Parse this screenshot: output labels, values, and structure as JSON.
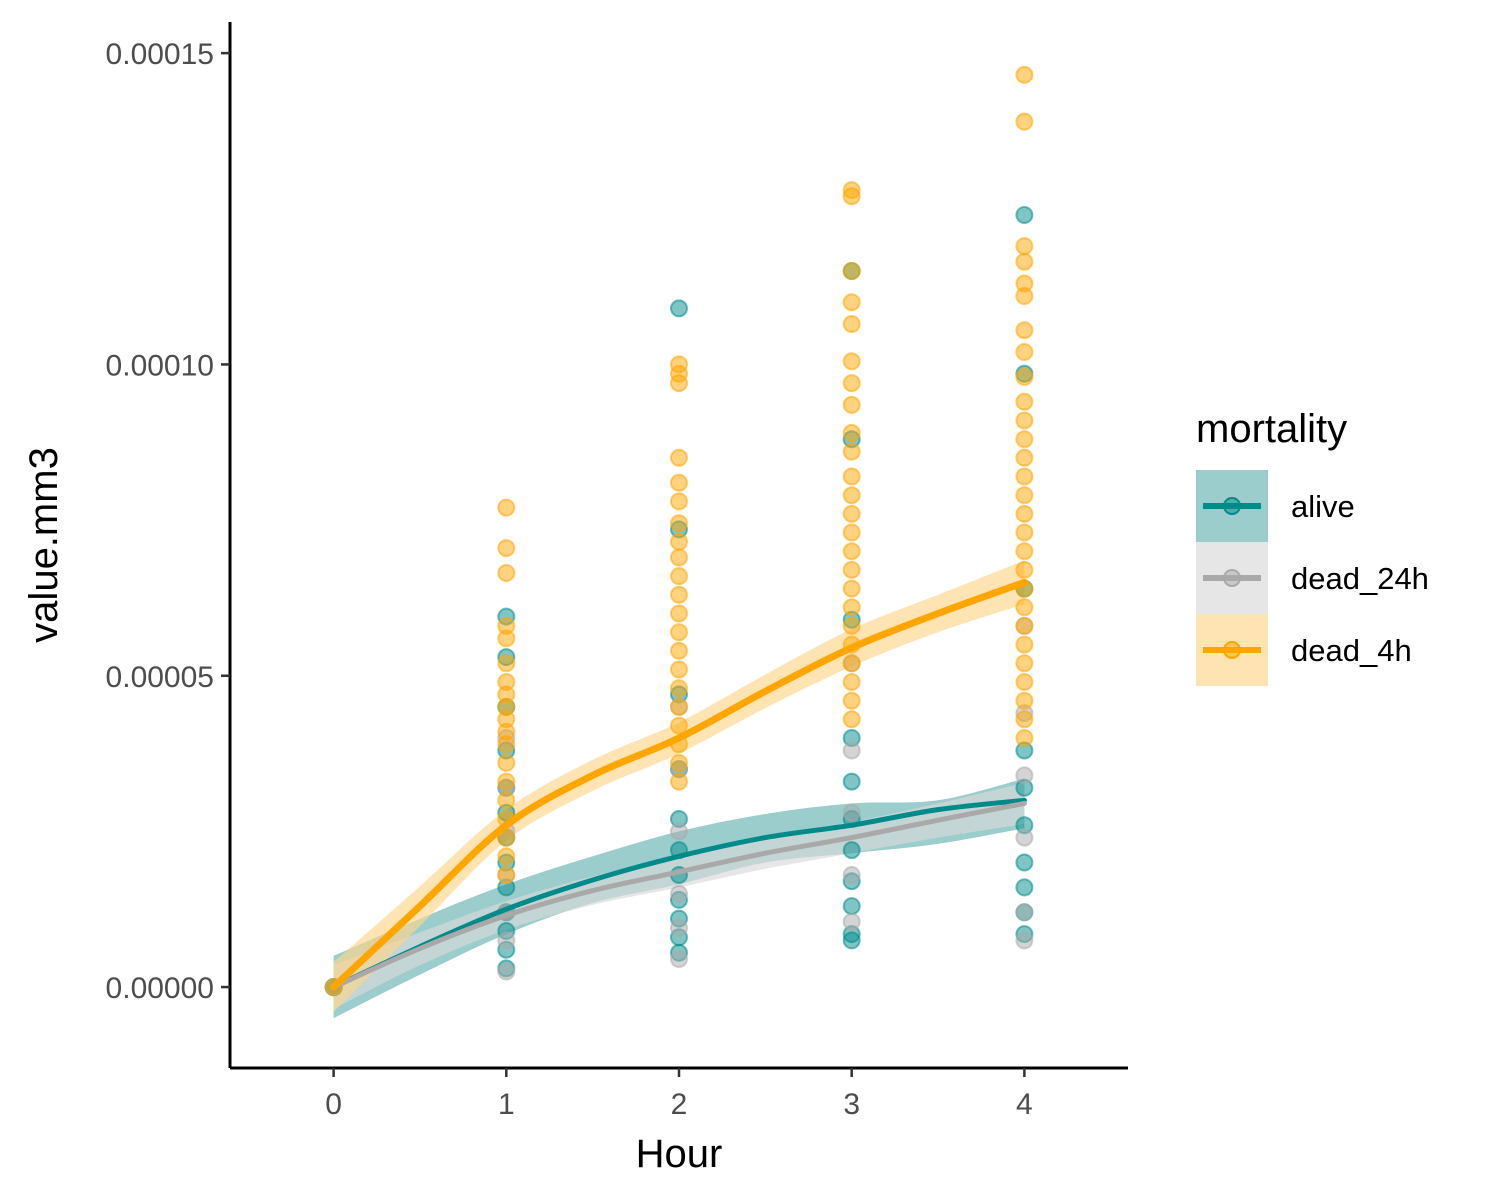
{
  "chart_data": {
    "type": "scatter",
    "title": "",
    "xlabel": "Hour",
    "ylabel": "value.mm3",
    "xlim": [
      -0.6,
      4.6
    ],
    "ylim": [
      -1.3e-05,
      0.000155
    ],
    "x_ticks": [
      0,
      1,
      2,
      3,
      4
    ],
    "x_tick_labels": [
      "0",
      "1",
      "2",
      "3",
      "4"
    ],
    "y_ticks": [
      0,
      5e-05,
      0.0001,
      0.00015
    ],
    "y_tick_labels": [
      "0.00000",
      "0.00005",
      "0.00010",
      "0.00015"
    ],
    "grid": false,
    "legend": {
      "title": "mortality",
      "position": "right"
    },
    "series": [
      {
        "name": "alive",
        "color": "#008B8B",
        "fill": "#66B2B2",
        "points": {
          "0": [
            0,
            0
          ],
          "1": [
            5.95e-05,
            5.3e-05,
            4.5e-05,
            3.8e-05,
            3.2e-05,
            2.8e-05,
            2.4e-05,
            2e-05,
            1.6e-05,
            1.2e-05,
            9e-06,
            6e-06,
            3e-06
          ],
          "2": [
            0.000109,
            7.35e-05,
            4.7e-05,
            3.5e-05,
            2.7e-05,
            2.2e-05,
            1.8e-05,
            1.4e-05,
            1.1e-05,
            8e-06,
            5.5e-06
          ],
          "3": [
            0.000115,
            8.8e-05,
            5.9e-05,
            4e-05,
            3.3e-05,
            2.7e-05,
            2.2e-05,
            1.7e-05,
            1.3e-05,
            8.5e-06,
            7.5e-06
          ],
          "4": [
            0.000124,
            9.85e-05,
            6.4e-05,
            3.8e-05,
            3.2e-05,
            2.6e-05,
            2e-05,
            1.6e-05,
            1.2e-05,
            8.5e-06
          ]
        },
        "trend": {
          "x": [
            0,
            0.5,
            1,
            1.5,
            2,
            2.5,
            3,
            3.5,
            4
          ],
          "y": [
            0,
            6.5e-06,
            1.25e-05,
            1.72e-05,
            2.1e-05,
            2.4e-05,
            2.6e-05,
            2.85e-05,
            3e-05
          ],
          "lower": [
            -5e-06,
            2e-06,
            8.5e-06,
            1.35e-05,
            1.65e-05,
            2e-05,
            2.15e-05,
            2.3e-05,
            2.55e-05
          ],
          "upper": [
            5e-06,
            1.1e-05,
            1.65e-05,
            2.1e-05,
            2.5e-05,
            2.78e-05,
            2.95e-05,
            3e-05,
            3.35e-05
          ]
        }
      },
      {
        "name": "dead_24h",
        "color": "#A9A9A9",
        "fill": "#D9D9D9",
        "points": {
          "0": [
            0
          ],
          "1": [
            4e-05,
            3.2e-05,
            2.5e-05,
            1.8e-05,
            1.2e-05,
            7.5e-06,
            2.5e-06
          ],
          "2": [
            4.5e-05,
            3.5e-05,
            2.5e-05,
            1.5e-05,
            9.5e-06,
            4.5e-06
          ],
          "3": [
            5.2e-05,
            3.8e-05,
            2.8e-05,
            1.8e-05,
            1.05e-05
          ],
          "4": [
            5.8e-05,
            4.4e-05,
            3.4e-05,
            2.4e-05,
            1.2e-05,
            7.5e-06
          ]
        },
        "trend": {
          "x": [
            0,
            0.5,
            1,
            1.5,
            2,
            2.5,
            3,
            3.5,
            4
          ],
          "y": [
            0,
            6.2e-06,
            1.15e-05,
            1.55e-05,
            1.85e-05,
            2.15e-05,
            2.4e-05,
            2.68e-05,
            2.95e-05
          ],
          "lower": [
            -3.5e-06,
            3.5e-06,
            9.2e-06,
            1.32e-05,
            1.6e-05,
            1.9e-05,
            2.15e-05,
            2.4e-05,
            2.62e-05
          ],
          "upper": [
            3.5e-06,
            8.8e-06,
            1.38e-05,
            1.78e-05,
            2.1e-05,
            2.4e-05,
            2.65e-05,
            2.95e-05,
            3.28e-05
          ]
        }
      },
      {
        "name": "dead_4h",
        "color": "#FFA500",
        "fill": "#FFD68A",
        "points": {
          "0": [
            0
          ],
          "1": [
            7.7e-05,
            7.05e-05,
            6.65e-05,
            5.8e-05,
            5.6e-05,
            5.2e-05,
            4.9e-05,
            4.7e-05,
            4.5e-05,
            4.3e-05,
            4.1e-05,
            3.9e-05,
            3.6e-05,
            3.3e-05,
            3e-05,
            2.7e-05,
            2.4e-05,
            2.1e-05,
            1.8e-05
          ],
          "2": [
            0.0001,
            9.85e-05,
            9.7e-05,
            8.5e-05,
            8.1e-05,
            7.8e-05,
            7.45e-05,
            7.15e-05,
            6.9e-05,
            6.6e-05,
            6.3e-05,
            6e-05,
            5.7e-05,
            5.4e-05,
            5.1e-05,
            4.8e-05,
            4.5e-05,
            4.2e-05,
            3.9e-05,
            3.6e-05,
            3.3e-05
          ],
          "3": [
            0.000128,
            0.000127,
            0.000115,
            0.00011,
            0.0001065,
            0.0001005,
            9.7e-05,
            9.35e-05,
            8.9e-05,
            8.6e-05,
            8.2e-05,
            7.9e-05,
            7.6e-05,
            7.3e-05,
            7e-05,
            6.7e-05,
            6.4e-05,
            6.1e-05,
            5.8e-05,
            5.5e-05,
            5.2e-05,
            4.9e-05,
            4.6e-05,
            4.3e-05
          ],
          "4": [
            0.0001465,
            0.000139,
            0.000119,
            0.0001165,
            0.000113,
            0.000111,
            0.0001055,
            0.000102,
            9.8e-05,
            9.4e-05,
            9.1e-05,
            8.8e-05,
            8.5e-05,
            8.2e-05,
            7.9e-05,
            7.6e-05,
            7.3e-05,
            7e-05,
            6.7e-05,
            6.4e-05,
            6.1e-05,
            5.8e-05,
            5.5e-05,
            5.2e-05,
            4.9e-05,
            4.6e-05,
            4.3e-05,
            4e-05
          ]
        },
        "trend": {
          "x": [
            0,
            0.5,
            1,
            1.5,
            2,
            2.5,
            3,
            3.5,
            4
          ],
          "y": [
            0,
            1.3e-05,
            2.6e-05,
            3.4e-05,
            4e-05,
            4.75e-05,
            5.45e-05,
            6e-05,
            6.5e-05
          ],
          "lower": [
            -4e-06,
            9.8e-06,
            2.35e-05,
            3.15e-05,
            3.75e-05,
            4.48e-05,
            5.15e-05,
            5.7e-05,
            6.15e-05
          ],
          "upper": [
            4e-06,
            1.62e-05,
            2.85e-05,
            3.65e-05,
            4.25e-05,
            5.02e-05,
            5.75e-05,
            6.3e-05,
            6.85e-05
          ]
        }
      }
    ]
  }
}
